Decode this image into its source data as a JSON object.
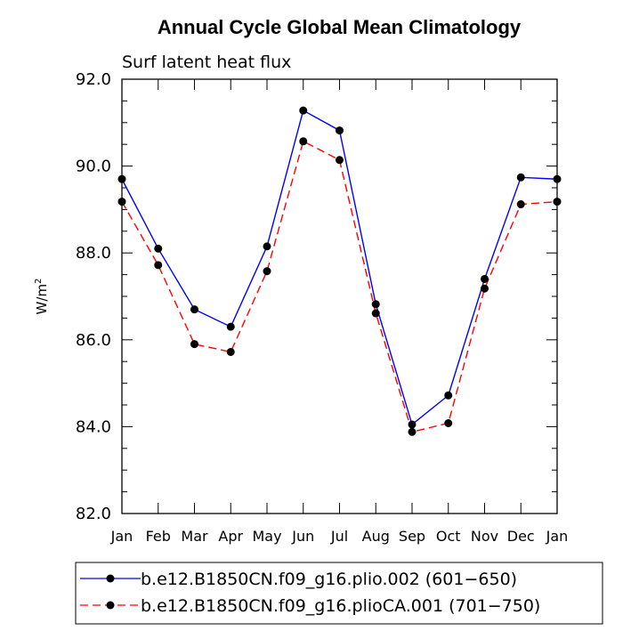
{
  "chart_data": {
    "type": "line",
    "title": "Annual Cycle Global Mean Climatology",
    "subtitle": "Surf latent heat flux",
    "xlabel": "",
    "ylabel": "W/m",
    "ylabel_sup": "2",
    "categories": [
      "Jan",
      "Feb",
      "Mar",
      "Apr",
      "May",
      "Jun",
      "Jul",
      "Aug",
      "Sep",
      "Oct",
      "Nov",
      "Dec",
      "Jan"
    ],
    "ylim": [
      82.0,
      92.0
    ],
    "yticks": [
      "82.0",
      "84.0",
      "86.0",
      "88.0",
      "90.0",
      "92.0"
    ],
    "legend_position": "bottom",
    "series": [
      {
        "name": "b.e12.B1850CN.f09_g16.plio.002 (601−650)",
        "color": "#0000ff",
        "dash": "solid",
        "values": [
          89.7,
          88.1,
          86.7,
          86.3,
          88.15,
          91.28,
          90.82,
          86.82,
          84.05,
          84.72,
          87.4,
          89.74,
          89.7
        ]
      },
      {
        "name": "b.e12.B1850CN.f09_g16.plioCA.001 (701−750)",
        "color": "#ff0000",
        "dash": "dashed",
        "values": [
          89.18,
          87.72,
          85.9,
          85.72,
          87.58,
          90.57,
          90.14,
          86.61,
          83.88,
          84.08,
          87.18,
          89.12,
          89.18
        ]
      }
    ]
  }
}
